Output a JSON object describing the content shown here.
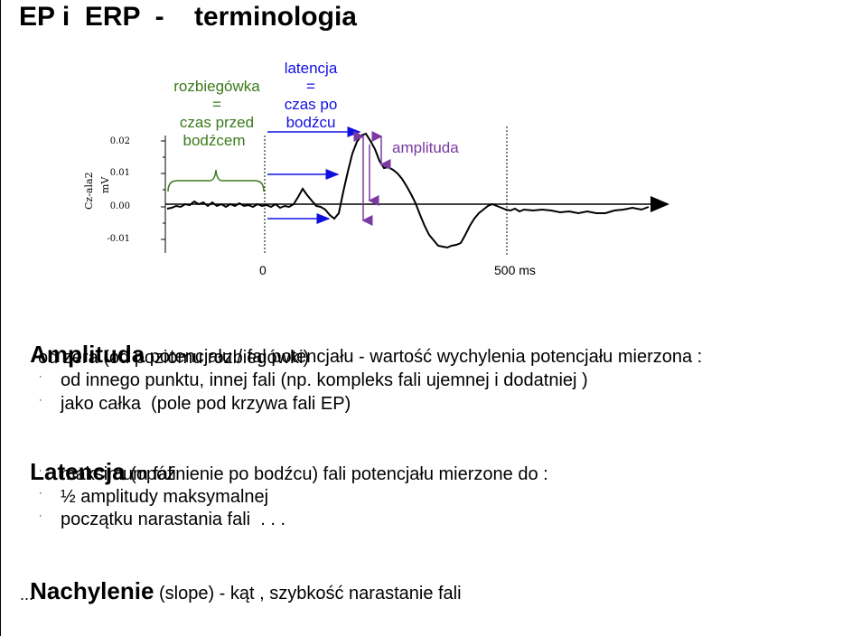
{
  "title": "EP i  ERP  -    terminologia",
  "figure": {
    "baseline_label": [
      "rozbiegówka",
      "=",
      "czas przed",
      "bodźcem"
    ],
    "latency_label": [
      "latencja",
      "=",
      "czas po",
      "bodźcu"
    ],
    "amplitude_label": "amplituda",
    "y_axis_label": "Cz-ala2",
    "y_unit": "mV",
    "y_ticks": [
      "0.02",
      "0.01",
      "0.00",
      "-0.01"
    ],
    "x_labels": {
      "zero": "0",
      "five_hundred": "500  ms"
    },
    "colors": {
      "baseline": "#3a7a1a",
      "latency": "#1010e0",
      "amplitude": "#7a3aa0"
    }
  },
  "amplitude": {
    "heading": "Amplituda",
    "rest": " potencjału / fal potencjału - wartość wychylenia potencjału mierzona :",
    "line2": "od zera (od poziomu rozbiegówki)",
    "bullets": [
      "od innego punktu, innej fali (np. kompleks fali ujemnej i dodatniej )",
      "jako całka  (pole pod krzywa fali EP)"
    ]
  },
  "latency": {
    "heading": "Latencja",
    "rest": " (opóźnienie po bodźcu) fali potencjału mierzone do :",
    "bullets": [
      "maksimum fali",
      "½ amplitudy maksymalnej",
      "początku narastania fali  . . ."
    ]
  },
  "slope": {
    "heading": "Nachylenie",
    "rest": " (slope) - kąt , szybkość narastanie fali",
    "ellipsis": "..."
  }
}
